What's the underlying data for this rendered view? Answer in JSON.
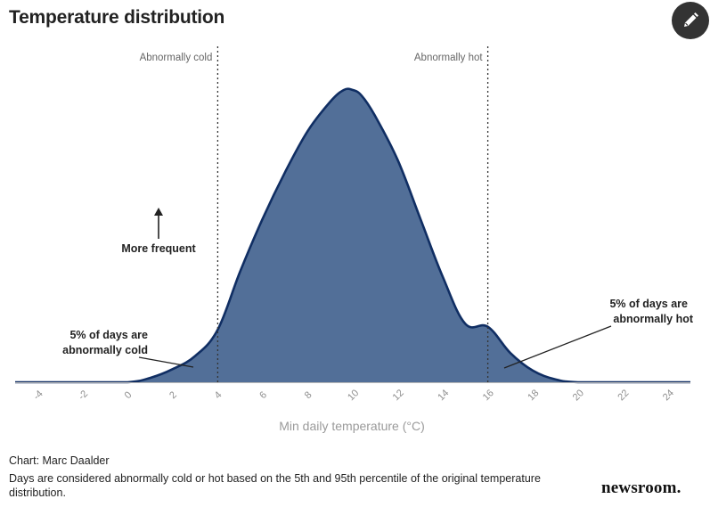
{
  "header": {
    "title": "Temperature distribution",
    "edit_icon": "pencil-icon"
  },
  "chart_data": {
    "type": "area",
    "title": "Temperature distribution",
    "xlabel": "Min daily temperature (°C)",
    "ylabel": "",
    "xlim": [
      -5,
      25
    ],
    "xticks": [
      -4,
      -2,
      0,
      2,
      4,
      6,
      8,
      10,
      12,
      14,
      16,
      18,
      20,
      22,
      24
    ],
    "x": [
      -5,
      -2,
      0,
      1,
      2,
      3,
      4,
      5,
      6,
      7,
      8,
      9,
      9.6,
      10,
      10.4,
      11,
      12,
      13,
      14,
      15,
      16,
      17,
      18,
      19,
      20,
      22,
      25
    ],
    "y": [
      0,
      0,
      0,
      1.5,
      4.5,
      9,
      18,
      38,
      56,
      72,
      86,
      96,
      100,
      100,
      98,
      91,
      76,
      56,
      36,
      20,
      19,
      10,
      4,
      1,
      0,
      0,
      0
    ],
    "ylim": [
      0,
      100
    ],
    "fill_color": "#526f98",
    "line_color": "#102e63",
    "thresholds": [
      {
        "x": 4,
        "label": "Abnormally cold"
      },
      {
        "x": 16,
        "label": "Abnormally hot"
      }
    ],
    "annotations": {
      "frequent": "More frequent",
      "cold_line1": "5% of days are",
      "cold_line2": "abnormally cold",
      "hot_line1": "5% of days are",
      "hot_line2": "abnormally hot"
    },
    "grid": false,
    "legend": "none"
  },
  "footer": {
    "source": "Chart: Marc Daalder",
    "note": "Days are considered abnormally cold or hot based on the 5th and 95th percentile of the original temperature distribution.",
    "brand": "newsroom."
  }
}
